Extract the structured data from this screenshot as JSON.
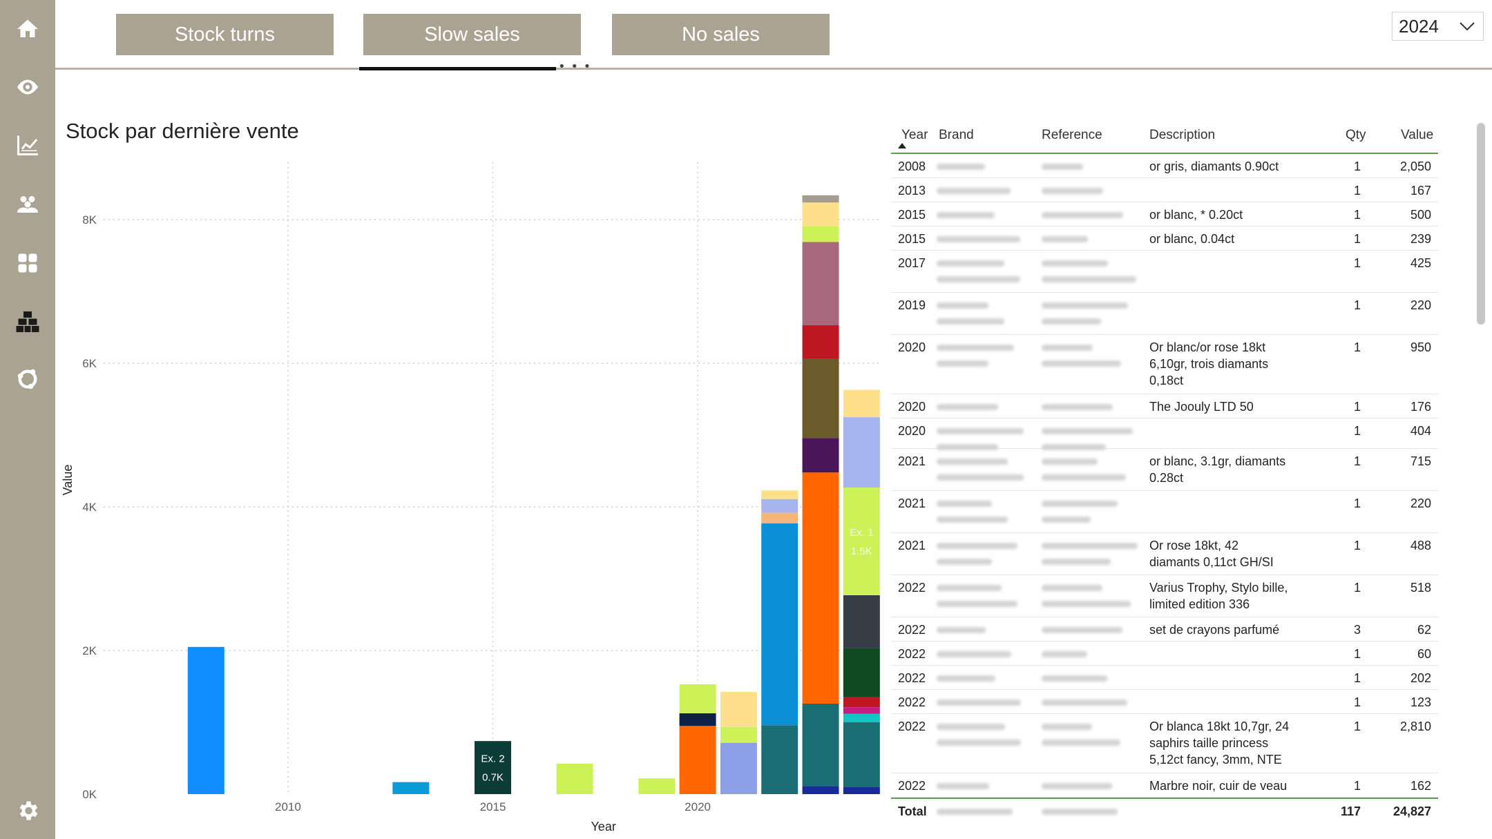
{
  "nav": {
    "items": [
      {
        "icon": "home-icon"
      },
      {
        "icon": "eye-icon"
      },
      {
        "icon": "line-chart-icon"
      },
      {
        "icon": "people-icon"
      },
      {
        "icon": "grid-icon"
      },
      {
        "icon": "boxes-icon"
      },
      {
        "icon": "network-icon"
      },
      {
        "icon": "settings-icon"
      }
    ]
  },
  "tabs": [
    {
      "label": "Stock turns"
    },
    {
      "label": "Slow sales"
    },
    {
      "label": "No sales"
    }
  ],
  "active_tab": "Slow sales",
  "year_filter": {
    "value": "2024"
  },
  "chart_title": "Stock par dernière vente",
  "chart_data": {
    "type": "bar",
    "stacked": true,
    "title": "Stock par dernière vente",
    "xlabel": "Year",
    "ylabel": "Value",
    "ylim": [
      0,
      8800
    ],
    "xlim": [
      2005.5,
      2024.5
    ],
    "x_ticks": [
      "2010",
      "2015",
      "2020"
    ],
    "y_ticks": [
      "0K",
      "2K",
      "4K",
      "6K",
      "8K"
    ],
    "grid": true,
    "stacks": [
      {
        "year": 2008,
        "segments": [
          {
            "value": 2050,
            "color": "#118DFF"
          }
        ]
      },
      {
        "year": 2013,
        "segments": [
          {
            "value": 167,
            "color": "#0B9BD9"
          }
        ]
      },
      {
        "year": 2015,
        "segments": [
          {
            "value": 739,
            "color": "#0D3B37"
          }
        ],
        "label": "Ex. 2\n0.7K"
      },
      {
        "year": 2017,
        "segments": [
          {
            "value": 425,
            "color": "#CDF257"
          }
        ]
      },
      {
        "year": 2019,
        "segments": [
          {
            "value": 220,
            "color": "#CDF257"
          }
        ]
      },
      {
        "year": 2020,
        "segments": [
          {
            "value": 950,
            "color": "#FF6600"
          },
          {
            "value": 176,
            "color": "#0C2247"
          },
          {
            "value": 404,
            "color": "#CDF257"
          }
        ]
      },
      {
        "year": 2021,
        "segments": [
          {
            "value": 715,
            "color": "#8D9FE8"
          },
          {
            "value": 220,
            "color": "#CDF257"
          },
          {
            "value": 488,
            "color": "#FFE08A"
          }
        ]
      },
      {
        "year": 2022,
        "segments": [
          {
            "value": 960,
            "color": "#1A6E73"
          },
          {
            "value": 2810,
            "color": "#0B8FD6"
          },
          {
            "value": 150,
            "color": "#F5B57A"
          },
          {
            "value": 190,
            "color": "#A6B5F0"
          },
          {
            "value": 120,
            "color": "#FFE08A"
          }
        ]
      },
      {
        "year": 2023,
        "segments": [
          {
            "value": 110,
            "color": "#1A2A9A"
          },
          {
            "value": 1150,
            "color": "#1A6E73"
          },
          {
            "value": 3220,
            "color": "#FF6600"
          },
          {
            "value": 480,
            "color": "#4B1659"
          },
          {
            "value": 1100,
            "color": "#6B5A2A"
          },
          {
            "value": 470,
            "color": "#BE1622"
          },
          {
            "value": 1160,
            "color": "#A8697E"
          },
          {
            "value": 220,
            "color": "#CDF257"
          },
          {
            "value": 330,
            "color": "#FFE08A"
          },
          {
            "value": 100,
            "color": "#A59C90"
          }
        ]
      },
      {
        "year": 2024,
        "segments": [
          {
            "value": 100,
            "color": "#1A2A9A"
          },
          {
            "value": 900,
            "color": "#1A6E73"
          },
          {
            "value": 120,
            "color": "#11C5C0"
          },
          {
            "value": 90,
            "color": "#C71B86"
          },
          {
            "value": 140,
            "color": "#BE1622"
          },
          {
            "value": 680,
            "color": "#0F4A23"
          },
          {
            "value": 740,
            "color": "#363D47"
          },
          {
            "value": 1500,
            "color": "#CDF257"
          },
          {
            "value": 980,
            "color": "#A6B5F0"
          },
          {
            "value": 380,
            "color": "#FFE08A"
          }
        ],
        "label": "Ex. 1\n1.5K"
      }
    ]
  },
  "table": {
    "headers": {
      "year": "Year",
      "brand": "Brand",
      "reference": "Reference",
      "description": "Description",
      "qty": "Qty",
      "value": "Value"
    },
    "rows": [
      {
        "year": "2008",
        "description": "or gris, diamants 0.90ct",
        "qty": "1",
        "value": "2,050",
        "lines": 1
      },
      {
        "year": "2013",
        "description": "",
        "qty": "1",
        "value": "167",
        "lines": 1
      },
      {
        "year": "2015",
        "description": "or blanc, * 0.20ct",
        "qty": "1",
        "value": "500",
        "lines": 1
      },
      {
        "year": "2015",
        "description": "or blanc, 0.04ct",
        "qty": "1",
        "value": "239",
        "lines": 1
      },
      {
        "year": "2017",
        "description": "",
        "qty": "1",
        "value": "425",
        "lines": 2
      },
      {
        "year": "2019",
        "description": "",
        "qty": "1",
        "value": "220",
        "lines": 2
      },
      {
        "year": "2020",
        "description": "Or blanc/or rose 18kt\n6,10gr, trois diamants\n0,18ct",
        "qty": "1",
        "value": "950",
        "lines": 3
      },
      {
        "year": "2020",
        "description": "The Joouly LTD 50",
        "qty": "1",
        "value": "176",
        "lines": 1
      },
      {
        "year": "2020",
        "description": "",
        "qty": "1",
        "value": "404",
        "lines": 2
      },
      {
        "year": "2021",
        "description": "or blanc, 3.1gr, diamants\n0.28ct",
        "qty": "1",
        "value": "715",
        "lines": 2
      },
      {
        "year": "2021",
        "description": "",
        "qty": "1",
        "value": "220",
        "lines": 2
      },
      {
        "year": "2021",
        "description": "Or rose 18kt, 42\ndiamants 0,11ct GH/SI",
        "qty": "1",
        "value": "488",
        "lines": 2
      },
      {
        "year": "2022",
        "description": "Varius Trophy, Stylo bille,\nlimited edition 336",
        "qty": "1",
        "value": "518",
        "lines": 2
      },
      {
        "year": "2022",
        "description": "set de crayons parfumé",
        "qty": "3",
        "value": "62",
        "lines": 1
      },
      {
        "year": "2022",
        "description": "",
        "qty": "1",
        "value": "60",
        "lines": 1
      },
      {
        "year": "2022",
        "description": "",
        "qty": "1",
        "value": "202",
        "lines": 1
      },
      {
        "year": "2022",
        "description": "",
        "qty": "1",
        "value": "123",
        "lines": 1
      },
      {
        "year": "2022",
        "description": "Or blanca 18kt 10,7gr, 24\nsaphirs taille princess\n5,12ct fancy, 3mm, NTE",
        "qty": "1",
        "value": "2,810",
        "lines": 3
      },
      {
        "year": "2022",
        "description": "Marbre noir, cuir de veau",
        "qty": "1",
        "value": "162",
        "lines": 1
      }
    ],
    "total": {
      "label": "Total",
      "qty": "117",
      "value": "24,827"
    }
  }
}
